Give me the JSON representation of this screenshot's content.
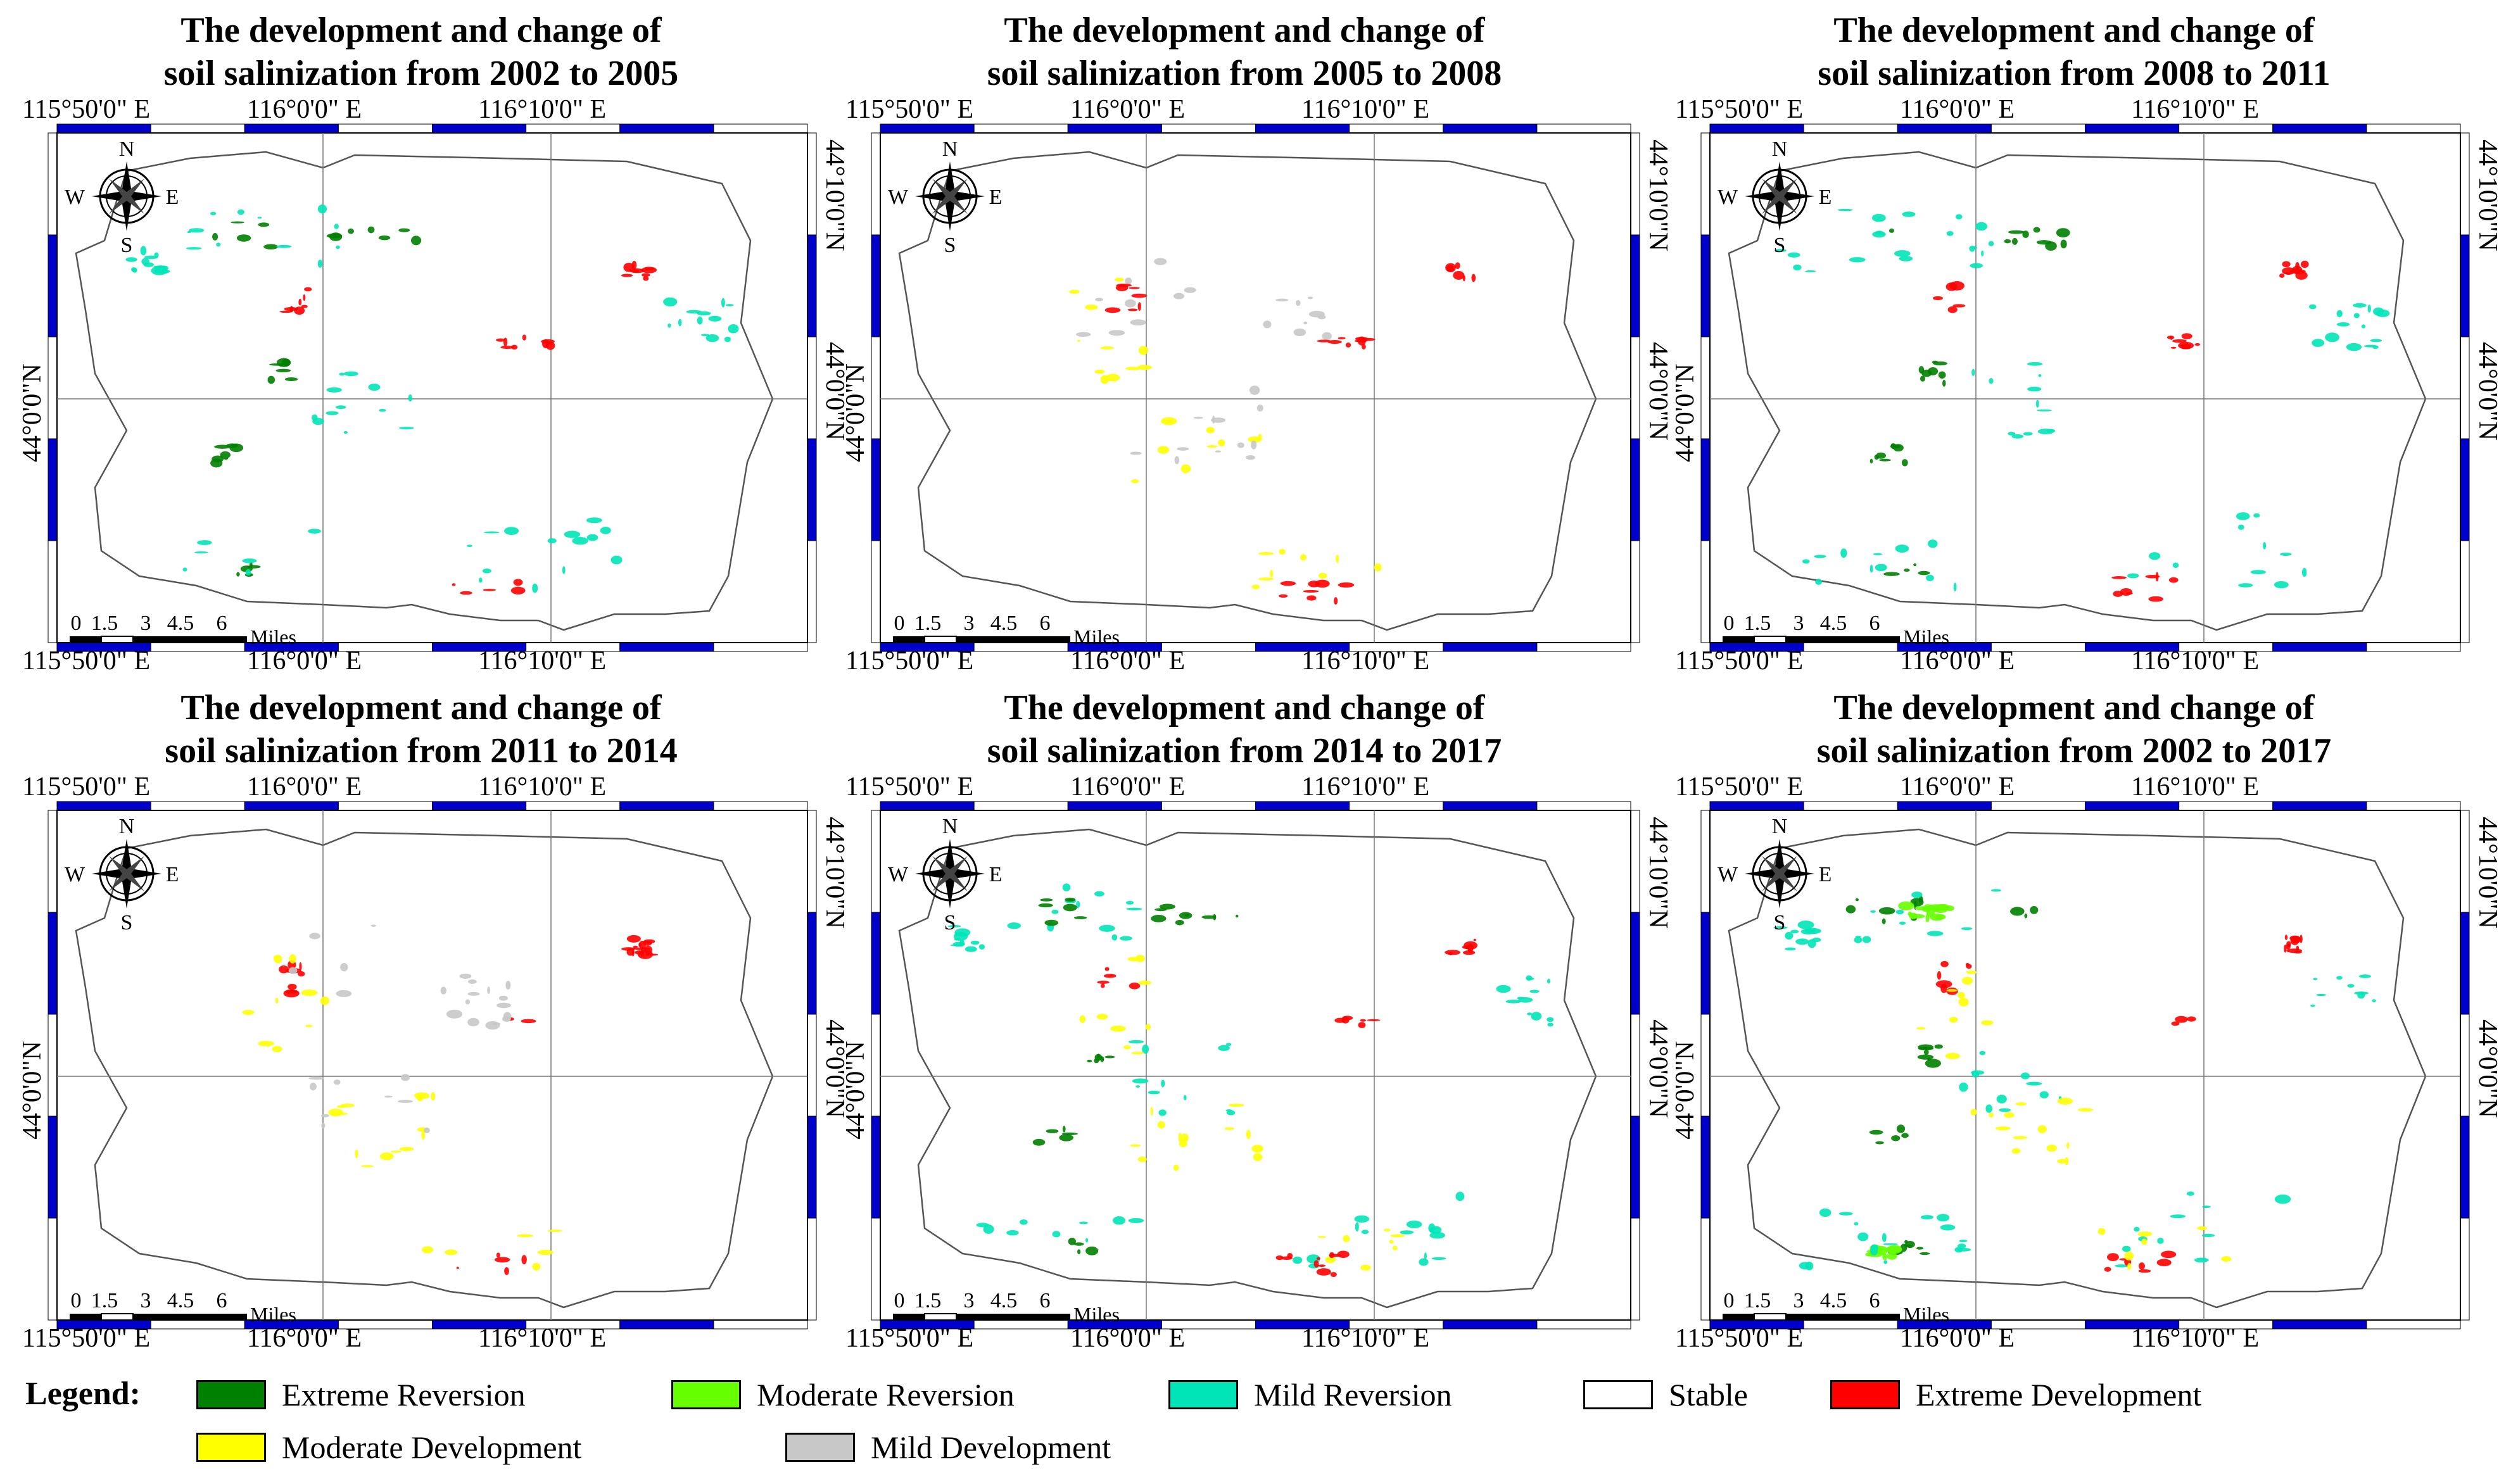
{
  "figure": {
    "panels": [
      {
        "title_line1": "The development and change of",
        "title_line2": "soil salinization from 2002 to 2005",
        "classes_present": [
          "extreme_reversion",
          "mild_reversion",
          "extreme_development"
        ]
      },
      {
        "title_line1": "The development and change of",
        "title_line2": "soil salinization from 2005 to 2008",
        "classes_present": [
          "moderate_development",
          "mild_development",
          "extreme_development"
        ]
      },
      {
        "title_line1": "The development and change of",
        "title_line2": "soil salinization from 2008 to 2011",
        "classes_present": [
          "extreme_reversion",
          "mild_reversion",
          "extreme_development"
        ]
      },
      {
        "title_line1": "The development and change of",
        "title_line2": "soil salinization from 2011 to 2014",
        "classes_present": [
          "extreme_development",
          "moderate_development",
          "mild_development"
        ]
      },
      {
        "title_line1": "The development and change of",
        "title_line2": "soil salinization from 2014 to 2017",
        "classes_present": [
          "mild_reversion",
          "extreme_reversion",
          "moderate_development",
          "extreme_development"
        ]
      },
      {
        "title_line1": "The development and change of",
        "title_line2": "soil salinization from 2002 to 2017",
        "classes_present": [
          "extreme_reversion",
          "moderate_reversion",
          "mild_reversion",
          "extreme_development",
          "moderate_development"
        ]
      }
    ],
    "axes": {
      "lon_labels": [
        "115°50'0\" E",
        "116°0'0\" E",
        "116°10'0\" E"
      ],
      "lat_labels": [
        "44°10'0\"N",
        "44°0'0\"N"
      ]
    },
    "scale_bar": {
      "ticks": [
        "0",
        "1.5",
        "3",
        "4.5",
        "6"
      ],
      "unit": "Miles"
    },
    "north_arrow": {
      "n": "N",
      "s": "S",
      "e": "E",
      "w": "W"
    },
    "legend": {
      "title": "Legend:",
      "items": [
        {
          "key": "extreme_reversion",
          "label": "Extreme Reversion",
          "color": "#008000"
        },
        {
          "key": "moderate_reversion",
          "label": "Moderate Reversion",
          "color": "#66ff00"
        },
        {
          "key": "mild_reversion",
          "label": "Mild Reversion",
          "color": "#00e5b8"
        },
        {
          "key": "stable",
          "label": "Stable",
          "color": "#ffffff"
        },
        {
          "key": "extreme_development",
          "label": "Extreme Development",
          "color": "#ff0000"
        },
        {
          "key": "moderate_development",
          "label": "Moderate Development",
          "color": "#ffff00"
        },
        {
          "key": "mild_development",
          "label": "Mild Development",
          "color": "#c8c8c8"
        }
      ]
    },
    "frame_colors": {
      "blue": "#0000cc",
      "white": "#ffffff"
    }
  }
}
